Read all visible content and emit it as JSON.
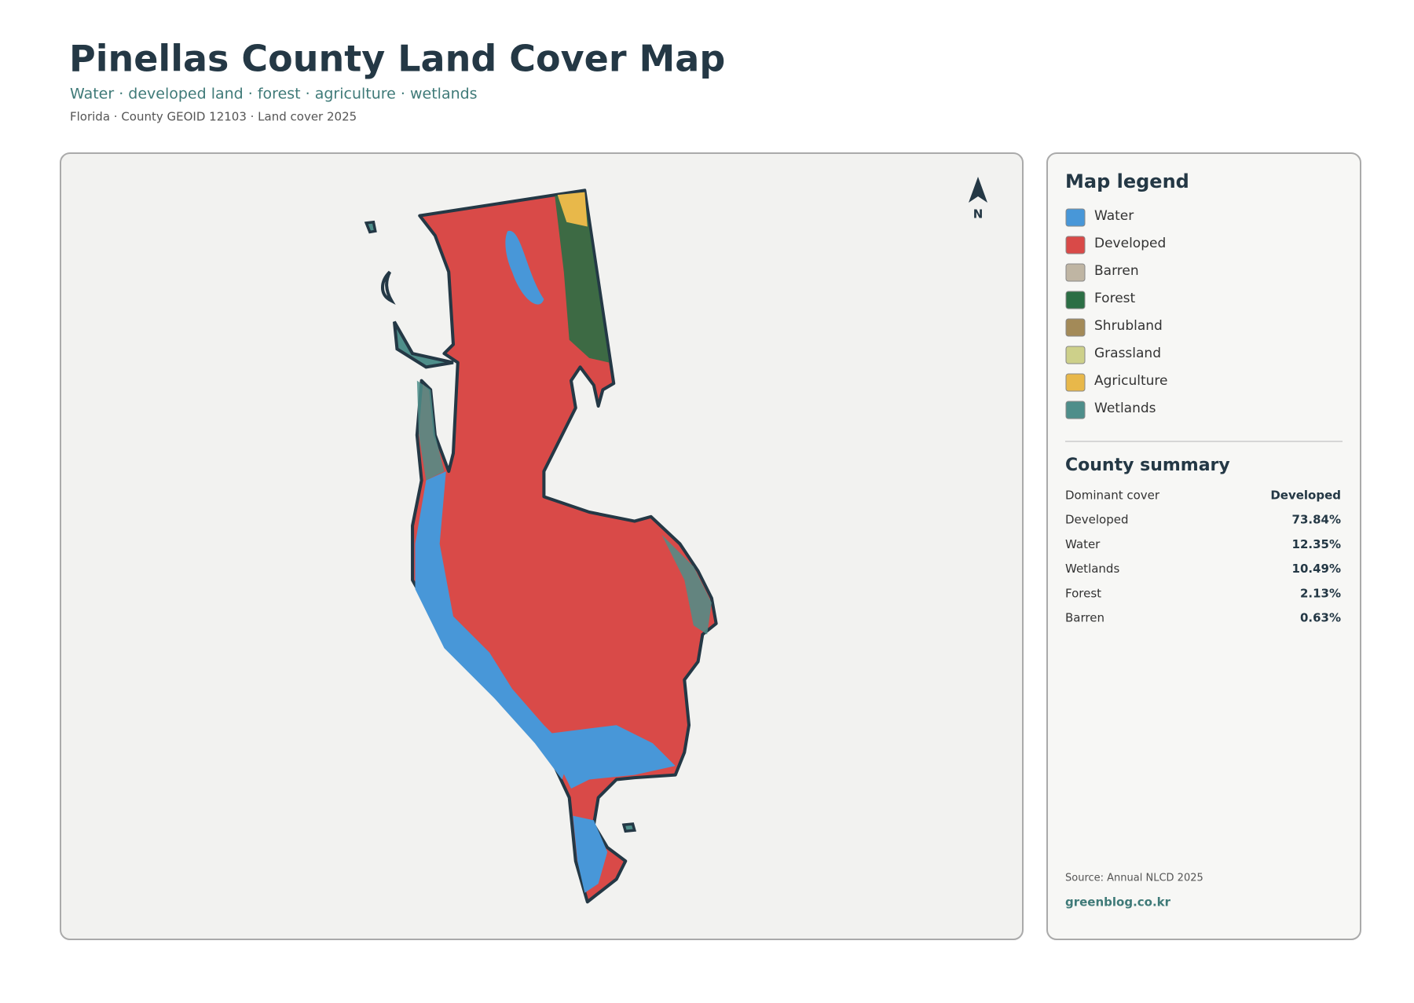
{
  "header": {
    "title": "Pinellas County Land Cover Map",
    "subtitle": "Water · developed land · forest · agriculture · wetlands",
    "meta": "Florida · County GEOID 12103 · Land cover 2025"
  },
  "map": {
    "north_label": "N"
  },
  "legend": {
    "title": "Map legend",
    "items": [
      {
        "label": "Water",
        "color": "#4897d8"
      },
      {
        "label": "Developed",
        "color": "#d94a48"
      },
      {
        "label": "Barren",
        "color": "#bfb5a3"
      },
      {
        "label": "Forest",
        "color": "#2b6e44"
      },
      {
        "label": "Shrubland",
        "color": "#a38a58"
      },
      {
        "label": "Grassland",
        "color": "#cdd08a"
      },
      {
        "label": "Agriculture",
        "color": "#e8b84a"
      },
      {
        "label": "Wetlands",
        "color": "#4e8e8a"
      }
    ]
  },
  "summary": {
    "title": "County summary",
    "rows": [
      {
        "label": "Dominant cover",
        "value": "Developed"
      },
      {
        "label": "Developed",
        "value": "73.84%"
      },
      {
        "label": "Water",
        "value": "12.35%"
      },
      {
        "label": "Wetlands",
        "value": "10.49%"
      },
      {
        "label": "Forest",
        "value": "2.13%"
      },
      {
        "label": "Barren",
        "value": "0.63%"
      }
    ]
  },
  "footer": {
    "source": "Source: Annual NLCD 2025",
    "site": "greenblog.co.kr"
  }
}
